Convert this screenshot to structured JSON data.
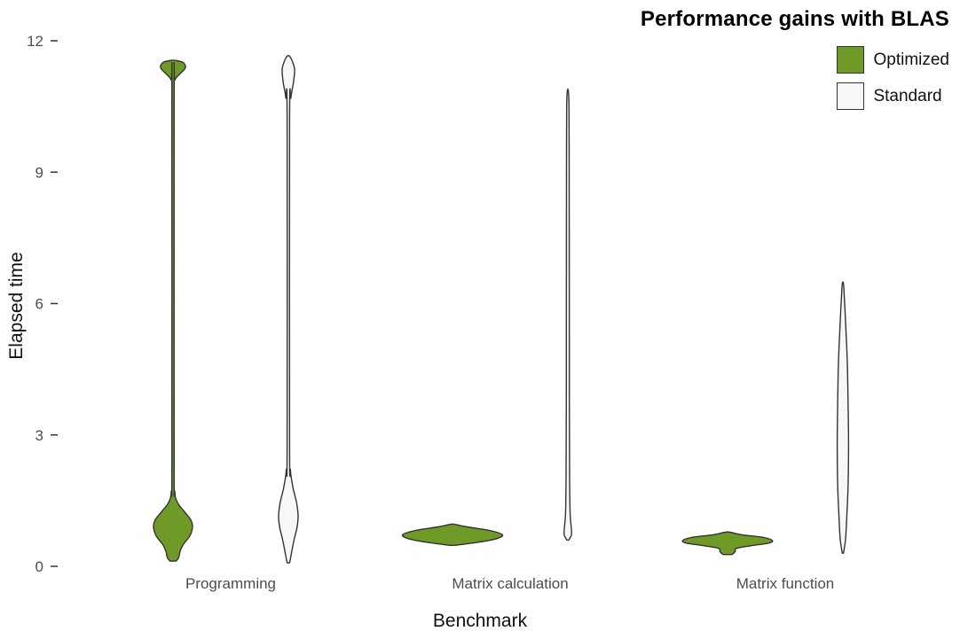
{
  "chart_data": {
    "type": "violin",
    "title": "Performance gains with BLAS",
    "xlabel": "Benchmark",
    "ylabel": "Elapsed time",
    "ylim": [
      0,
      12
    ],
    "yticks": [
      0,
      3,
      6,
      9,
      12
    ],
    "grid": false,
    "legend_position": "top-right",
    "categories": [
      "Programming",
      "Matrix calculation",
      "Matrix function"
    ],
    "legend": [
      {
        "name": "Optimized",
        "color": "#6f9a28"
      },
      {
        "name": "Standard",
        "color": "#f7f7f7"
      }
    ],
    "violins": [
      {
        "category": "Programming",
        "series": "Optimized",
        "y_range": [
          0.12,
          11.55
        ],
        "profile": [
          [
            0.12,
            0.06
          ],
          [
            0.2,
            0.11
          ],
          [
            0.35,
            0.14
          ],
          [
            0.5,
            0.2
          ],
          [
            0.7,
            0.33
          ],
          [
            0.9,
            0.38
          ],
          [
            1.05,
            0.35
          ],
          [
            1.25,
            0.22
          ],
          [
            1.45,
            0.09
          ],
          [
            1.7,
            0.035
          ],
          [
            2.5,
            0.022
          ],
          [
            10.8,
            0.022
          ],
          [
            11.1,
            0.035
          ],
          [
            11.25,
            0.14
          ],
          [
            11.38,
            0.24
          ],
          [
            11.5,
            0.2
          ],
          [
            11.55,
            0.05
          ]
        ]
      },
      {
        "category": "Programming",
        "series": "Standard",
        "y_range": [
          0.08,
          11.65
        ],
        "profile": [
          [
            0.08,
            0.025
          ],
          [
            0.3,
            0.06
          ],
          [
            0.6,
            0.11
          ],
          [
            0.9,
            0.17
          ],
          [
            1.15,
            0.19
          ],
          [
            1.45,
            0.16
          ],
          [
            1.8,
            0.09
          ],
          [
            2.2,
            0.04
          ],
          [
            2.8,
            0.025
          ],
          [
            10.2,
            0.025
          ],
          [
            10.7,
            0.05
          ],
          [
            11.05,
            0.1
          ],
          [
            11.35,
            0.12
          ],
          [
            11.55,
            0.07
          ],
          [
            11.65,
            0.02
          ]
        ]
      },
      {
        "category": "Matrix calculation",
        "series": "Optimized",
        "y_range": [
          0.48,
          0.96
        ],
        "profile": [
          [
            0.48,
            0.05
          ],
          [
            0.55,
            0.5
          ],
          [
            0.63,
            0.85
          ],
          [
            0.72,
            0.97
          ],
          [
            0.82,
            0.72
          ],
          [
            0.9,
            0.28
          ],
          [
            0.96,
            0.04
          ]
        ]
      },
      {
        "category": "Matrix calculation",
        "series": "Standard",
        "y_range": [
          0.6,
          10.85
        ],
        "profile": [
          [
            0.6,
            0.015
          ],
          [
            0.72,
            0.07
          ],
          [
            0.9,
            0.065
          ],
          [
            1.2,
            0.045
          ],
          [
            2.0,
            0.035
          ],
          [
            4.0,
            0.03
          ],
          [
            7.0,
            0.028
          ],
          [
            9.5,
            0.026
          ],
          [
            10.5,
            0.022
          ],
          [
            10.85,
            0.01
          ]
        ]
      },
      {
        "category": "Matrix function",
        "series": "Optimized",
        "y_range": [
          0.27,
          0.78
        ],
        "profile": [
          [
            0.27,
            0.09
          ],
          [
            0.34,
            0.15
          ],
          [
            0.41,
            0.17
          ],
          [
            0.47,
            0.45
          ],
          [
            0.53,
            0.8
          ],
          [
            0.59,
            0.87
          ],
          [
            0.66,
            0.7
          ],
          [
            0.72,
            0.28
          ],
          [
            0.78,
            0.04
          ]
        ]
      },
      {
        "category": "Matrix function",
        "series": "Standard",
        "y_range": [
          0.3,
          6.45
        ],
        "profile": [
          [
            0.3,
            0.012
          ],
          [
            0.6,
            0.05
          ],
          [
            1.0,
            0.07
          ],
          [
            1.8,
            0.1
          ],
          [
            2.8,
            0.11
          ],
          [
            3.8,
            0.1
          ],
          [
            4.7,
            0.085
          ],
          [
            5.5,
            0.055
          ],
          [
            6.1,
            0.03
          ],
          [
            6.45,
            0.012
          ]
        ]
      }
    ]
  }
}
